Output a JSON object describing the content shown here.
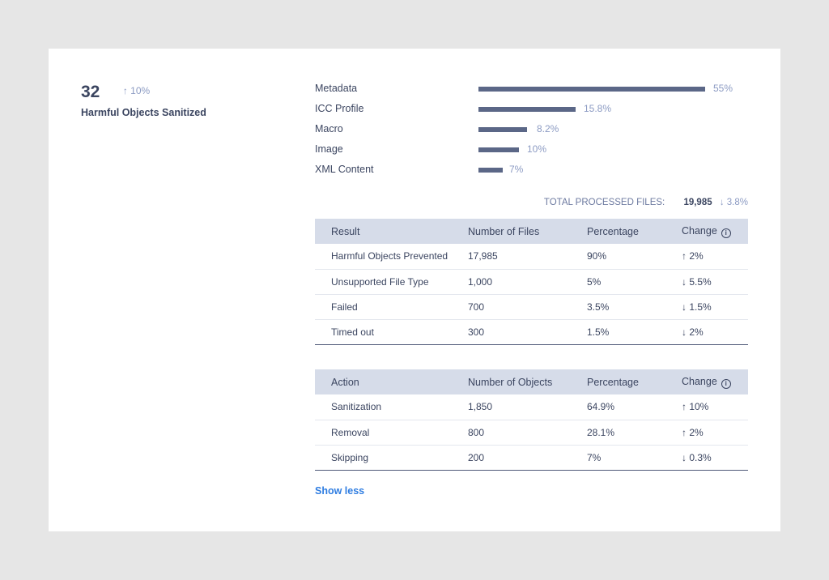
{
  "kpi": {
    "value": "32",
    "change": "↑ 10%",
    "label": "Harmful Objects Sanitized"
  },
  "breakdown": [
    {
      "label": "Metadata",
      "value": "55%"
    },
    {
      "label": "ICC Profile",
      "value": "15.8%"
    },
    {
      "label": "Macro",
      "value": "8.2%"
    },
    {
      "label": "Image",
      "value": "10%"
    },
    {
      "label": "XML Content",
      "value": "7%"
    }
  ],
  "total": {
    "label": "TOTAL PROCESSED FILES:",
    "value": "19,985",
    "change": "↓ 3.8%"
  },
  "results_table": {
    "headers": [
      "Result",
      "Number of Files",
      "Percentage",
      "Change"
    ],
    "rows": [
      [
        "Harmful Objects Prevented",
        "17,985",
        "90%",
        "↑ 2%"
      ],
      [
        "Unsupported File Type",
        "1,000",
        "5%",
        "↓ 5.5%"
      ],
      [
        "Failed",
        "700",
        "3.5%",
        "↓ 1.5%"
      ],
      [
        "Timed out",
        "300",
        "1.5%",
        "↓ 2%"
      ]
    ]
  },
  "actions_table": {
    "headers": [
      "Action",
      "Number of Objects",
      "Percentage",
      "Change"
    ],
    "rows": [
      [
        "Sanitization",
        "1,850",
        "64.9%",
        "↑ 10%"
      ],
      [
        "Removal",
        "800",
        "28.1%",
        "↑ 2%"
      ],
      [
        "Skipping",
        "200",
        "7%",
        "↓ 0.3%"
      ]
    ]
  },
  "info_glyph": "i",
  "show_less": "Show less"
}
